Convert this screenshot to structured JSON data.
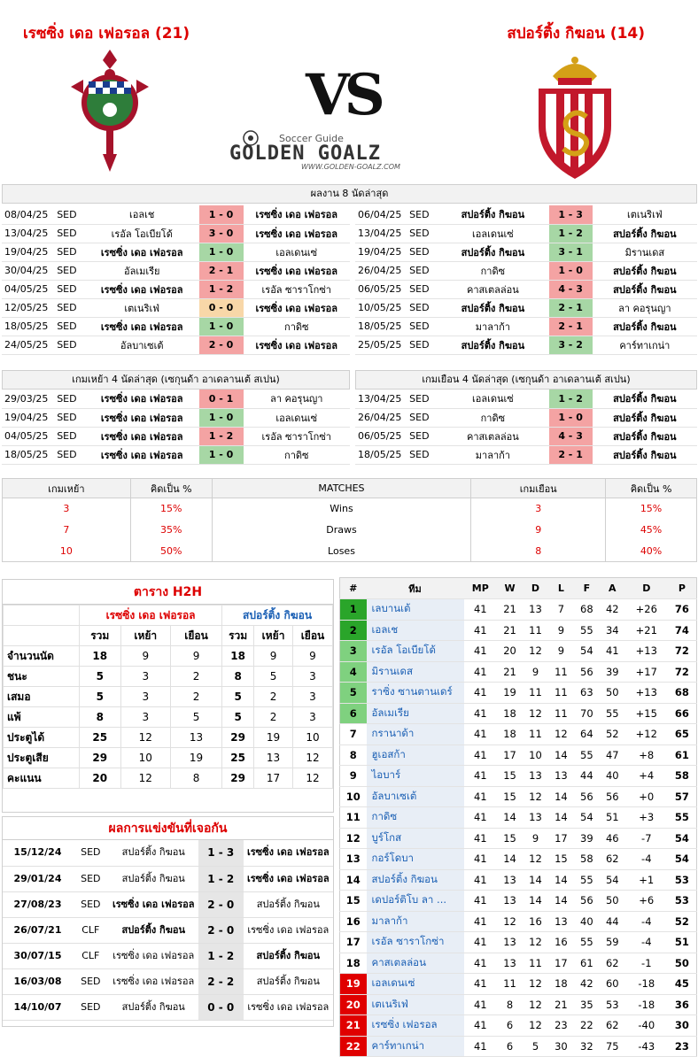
{
  "header": {
    "home_title": "เรซซิ่ง เดอ เฟอรอล (21)",
    "away_title": "สปอร์ติ้ง กิฆอน (14)",
    "vs": "VS",
    "brand_sub": "Soccer Guide",
    "brand_main": "GOLDEN GOALZ",
    "brand_url": "WWW.GOLDEN-GOALZ.COM"
  },
  "last8": {
    "title": "ผลงาน 8 นัดล่าสุด",
    "home": [
      {
        "date": "08/04/25",
        "comp": "SED",
        "t1": "เอลเช",
        "score": "1 - 0",
        "t2": "เรซซิ่ง เดอ เฟอรอล",
        "res": "lose",
        "b": "t2"
      },
      {
        "date": "13/04/25",
        "comp": "SED",
        "t1": "เรอัล โอเบียโด้",
        "score": "3 - 0",
        "t2": "เรซซิ่ง เดอ เฟอรอล",
        "res": "lose",
        "b": "t2"
      },
      {
        "date": "19/04/25",
        "comp": "SED",
        "t1": "เรซซิ่ง เดอ เฟอรอล",
        "score": "1 - 0",
        "t2": "เอลเดนเซ่",
        "res": "win",
        "b": "t1"
      },
      {
        "date": "30/04/25",
        "comp": "SED",
        "t1": "อัลเมเรีย",
        "score": "2 - 1",
        "t2": "เรซซิ่ง เดอ เฟอรอล",
        "res": "lose",
        "b": "t2"
      },
      {
        "date": "04/05/25",
        "comp": "SED",
        "t1": "เรซซิ่ง เดอ เฟอรอล",
        "score": "1 - 2",
        "t2": "เรอัล ซาราโกซ่า",
        "res": "lose",
        "b": "t1"
      },
      {
        "date": "12/05/25",
        "comp": "SED",
        "t1": "เตเนริเฟ่",
        "score": "0 - 0",
        "t2": "เรซซิ่ง เดอ เฟอรอล",
        "res": "draw",
        "b": "t2"
      },
      {
        "date": "18/05/25",
        "comp": "SED",
        "t1": "เรซซิ่ง เดอ เฟอรอล",
        "score": "1 - 0",
        "t2": "กาดิซ",
        "res": "win",
        "b": "t1"
      },
      {
        "date": "24/05/25",
        "comp": "SED",
        "t1": "อัลบาเซเต้",
        "score": "2 - 0",
        "t2": "เรซซิ่ง เดอ เฟอรอล",
        "res": "lose",
        "b": "t2"
      }
    ],
    "away": [
      {
        "date": "06/04/25",
        "comp": "SED",
        "t1": "สปอร์ติ้ง กิฆอน",
        "score": "1 - 3",
        "t2": "เตเนริเฟ่",
        "res": "lose",
        "b": "t1"
      },
      {
        "date": "13/04/25",
        "comp": "SED",
        "t1": "เอลเดนเซ่",
        "score": "1 - 2",
        "t2": "สปอร์ติ้ง กิฆอน",
        "res": "win",
        "b": "t2"
      },
      {
        "date": "19/04/25",
        "comp": "SED",
        "t1": "สปอร์ติ้ง กิฆอน",
        "score": "3 - 1",
        "t2": "มิรานเดส",
        "res": "win",
        "b": "t1"
      },
      {
        "date": "26/04/25",
        "comp": "SED",
        "t1": "กาดิซ",
        "score": "1 - 0",
        "t2": "สปอร์ติ้ง กิฆอน",
        "res": "lose",
        "b": "t2"
      },
      {
        "date": "06/05/25",
        "comp": "SED",
        "t1": "คาสเตลล่อน",
        "score": "4 - 3",
        "t2": "สปอร์ติ้ง กิฆอน",
        "res": "lose",
        "b": "t2"
      },
      {
        "date": "10/05/25",
        "comp": "SED",
        "t1": "สปอร์ติ้ง กิฆอน",
        "score": "2 - 1",
        "t2": "ลา คอรุนญา",
        "res": "win",
        "b": "t1"
      },
      {
        "date": "18/05/25",
        "comp": "SED",
        "t1": "มาลาก้า",
        "score": "2 - 1",
        "t2": "สปอร์ติ้ง กิฆอน",
        "res": "lose",
        "b": "t2"
      },
      {
        "date": "25/05/25",
        "comp": "SED",
        "t1": "สปอร์ติ้ง กิฆอน",
        "score": "3 - 2",
        "t2": "คาร์ทาเกน่า",
        "res": "win",
        "b": "t1"
      }
    ]
  },
  "last4": {
    "home_title": "เกมเหย้า 4 นัดล่าสุด (เซกุนด้า อาเดลานเต้ สเปน)",
    "away_title": "เกมเยือน 4 นัดล่าสุด (เซกุนด้า อาเดลานเต้ สเปน)",
    "home": [
      {
        "date": "29/03/25",
        "comp": "SED",
        "t1": "เรซซิ่ง เดอ เฟอรอล",
        "score": "0 - 1",
        "t2": "ลา คอรุนญา",
        "res": "lose",
        "b": "t1"
      },
      {
        "date": "19/04/25",
        "comp": "SED",
        "t1": "เรซซิ่ง เดอ เฟอรอล",
        "score": "1 - 0",
        "t2": "เอลเดนเซ่",
        "res": "win",
        "b": "t1"
      },
      {
        "date": "04/05/25",
        "comp": "SED",
        "t1": "เรซซิ่ง เดอ เฟอรอล",
        "score": "1 - 2",
        "t2": "เรอัล ซาราโกซ่า",
        "res": "lose",
        "b": "t1"
      },
      {
        "date": "18/05/25",
        "comp": "SED",
        "t1": "เรซซิ่ง เดอ เฟอรอล",
        "score": "1 - 0",
        "t2": "กาดิซ",
        "res": "win",
        "b": "t1"
      }
    ],
    "away": [
      {
        "date": "13/04/25",
        "comp": "SED",
        "t1": "เอลเดนเซ่",
        "score": "1 - 2",
        "t2": "สปอร์ติ้ง กิฆอน",
        "res": "win",
        "b": "t2"
      },
      {
        "date": "26/04/25",
        "comp": "SED",
        "t1": "กาดิซ",
        "score": "1 - 0",
        "t2": "สปอร์ติ้ง กิฆอน",
        "res": "lose",
        "b": "t2"
      },
      {
        "date": "06/05/25",
        "comp": "SED",
        "t1": "คาสเตลล่อน",
        "score": "4 - 3",
        "t2": "สปอร์ติ้ง กิฆอน",
        "res": "lose",
        "b": "t2"
      },
      {
        "date": "18/05/25",
        "comp": "SED",
        "t1": "มาลาก้า",
        "score": "2 - 1",
        "t2": "สปอร์ติ้ง กิฆอน",
        "res": "lose",
        "b": "t2"
      }
    ]
  },
  "stats": {
    "headers": [
      "เกมเหย้า",
      "คิดเป็น %",
      "MATCHES",
      "เกมเยือน",
      "คิดเป็น %"
    ],
    "rows": [
      [
        "3",
        "15%",
        "Wins",
        "3",
        "15%"
      ],
      [
        "7",
        "35%",
        "Draws",
        "9",
        "45%"
      ],
      [
        "10",
        "50%",
        "Loses",
        "8",
        "40%"
      ]
    ]
  },
  "h2h": {
    "title": "ตาราง H2H",
    "home": "เรซซิ่ง เดอ เฟอรอล",
    "away": "สปอร์ติ้ง กิฆอน",
    "sub": [
      "รวม",
      "เหย้า",
      "เยือน",
      "รวม",
      "เหย้า",
      "เยือน"
    ],
    "rows": [
      [
        "จำนวนนัด",
        "18",
        "9",
        "9",
        "18",
        "9",
        "9"
      ],
      [
        "ชนะ",
        "5",
        "3",
        "2",
        "8",
        "5",
        "3"
      ],
      [
        "เสมอ",
        "5",
        "3",
        "2",
        "5",
        "2",
        "3"
      ],
      [
        "แพ้",
        "8",
        "3",
        "5",
        "5",
        "2",
        "3"
      ],
      [
        "ประตูได้",
        "25",
        "12",
        "13",
        "29",
        "19",
        "10"
      ],
      [
        "ประตูเสีย",
        "29",
        "10",
        "19",
        "25",
        "13",
        "12"
      ],
      [
        "คะแนน",
        "20",
        "12",
        "8",
        "29",
        "17",
        "12"
      ]
    ]
  },
  "past": {
    "title": "ผลการแข่งขันที่เจอกัน",
    "rows": [
      {
        "date": "15/12/24",
        "comp": "SED",
        "t1": "สปอร์ติ้ง กิฆอน",
        "score": "1 - 3",
        "t2": "เรซซิ่ง เดอ เฟอรอล",
        "b": "t2"
      },
      {
        "date": "29/01/24",
        "comp": "SED",
        "t1": "สปอร์ติ้ง กิฆอน",
        "score": "1 - 2",
        "t2": "เรซซิ่ง เดอ เฟอรอล",
        "b": "t2"
      },
      {
        "date": "27/08/23",
        "comp": "SED",
        "t1": "เรซซิ่ง เดอ เฟอรอล",
        "score": "2 - 0",
        "t2": "สปอร์ติ้ง กิฆอน",
        "b": "t1"
      },
      {
        "date": "26/07/21",
        "comp": "CLF",
        "t1": "สปอร์ติ้ง กิฆอน",
        "score": "2 - 0",
        "t2": "เรซซิ่ง เดอ เฟอรอล",
        "b": "t1"
      },
      {
        "date": "30/07/15",
        "comp": "CLF",
        "t1": "เรซซิ่ง เดอ เฟอรอล",
        "score": "1 - 2",
        "t2": "สปอร์ติ้ง กิฆอน",
        "b": "t2"
      },
      {
        "date": "16/03/08",
        "comp": "SED",
        "t1": "เรซซิ่ง เดอ เฟอรอล",
        "score": "2 - 2",
        "t2": "สปอร์ติ้ง กิฆอน",
        "b": ""
      },
      {
        "date": "14/10/07",
        "comp": "SED",
        "t1": "สปอร์ติ้ง กิฆอน",
        "score": "0 - 0",
        "t2": "เรซซิ่ง เดอ เฟอรอล",
        "b": ""
      }
    ]
  },
  "league": {
    "headers": [
      "#",
      "ทีม",
      "MP",
      "W",
      "D",
      "L",
      "F",
      "A",
      "D",
      "P"
    ],
    "rows": [
      [
        "1",
        "เลบานเต้",
        "41",
        "21",
        "13",
        "7",
        "68",
        "42",
        "+26",
        "76",
        "g"
      ],
      [
        "2",
        "เอลเช",
        "41",
        "21",
        "11",
        "9",
        "55",
        "34",
        "+21",
        "74",
        "g"
      ],
      [
        "3",
        "เรอัล โอเบียโด้",
        "41",
        "20",
        "12",
        "9",
        "54",
        "41",
        "+13",
        "72",
        "lg"
      ],
      [
        "4",
        "มิรานเดส",
        "41",
        "21",
        "9",
        "11",
        "56",
        "39",
        "+17",
        "72",
        "lg"
      ],
      [
        "5",
        "ราซิ่ง ซานตานเดร์",
        "41",
        "19",
        "11",
        "11",
        "63",
        "50",
        "+13",
        "68",
        "lg"
      ],
      [
        "6",
        "อัลเมเรีย",
        "41",
        "18",
        "12",
        "11",
        "70",
        "55",
        "+15",
        "66",
        "lg"
      ],
      [
        "7",
        "กรานาด้า",
        "41",
        "18",
        "11",
        "12",
        "64",
        "52",
        "+12",
        "65",
        ""
      ],
      [
        "8",
        "ฮูเอสก้า",
        "41",
        "17",
        "10",
        "14",
        "55",
        "47",
        "+8",
        "61",
        ""
      ],
      [
        "9",
        "ไอบาร์",
        "41",
        "15",
        "13",
        "13",
        "44",
        "40",
        "+4",
        "58",
        ""
      ],
      [
        "10",
        "อัลบาเซเต้",
        "41",
        "15",
        "12",
        "14",
        "56",
        "56",
        "+0",
        "57",
        ""
      ],
      [
        "11",
        "กาดิซ",
        "41",
        "14",
        "13",
        "14",
        "54",
        "51",
        "+3",
        "55",
        ""
      ],
      [
        "12",
        "บูร์โกส",
        "41",
        "15",
        "9",
        "17",
        "39",
        "46",
        "-7",
        "54",
        ""
      ],
      [
        "13",
        "กอร์โดบา",
        "41",
        "14",
        "12",
        "15",
        "58",
        "62",
        "-4",
        "54",
        ""
      ],
      [
        "14",
        "สปอร์ติ้ง กิฆอน",
        "41",
        "13",
        "14",
        "14",
        "55",
        "54",
        "+1",
        "53",
        ""
      ],
      [
        "15",
        "เดปอร์ติโบ ลา ...",
        "41",
        "13",
        "14",
        "14",
        "56",
        "50",
        "+6",
        "53",
        ""
      ],
      [
        "16",
        "มาลาก้า",
        "41",
        "12",
        "16",
        "13",
        "40",
        "44",
        "-4",
        "52",
        ""
      ],
      [
        "17",
        "เรอัล ซาราโกซ่า",
        "41",
        "13",
        "12",
        "16",
        "55",
        "59",
        "-4",
        "51",
        ""
      ],
      [
        "18",
        "คาสเตลล่อน",
        "41",
        "13",
        "11",
        "17",
        "61",
        "62",
        "-1",
        "50",
        ""
      ],
      [
        "19",
        "เอลเดนเซ่",
        "41",
        "11",
        "12",
        "18",
        "42",
        "60",
        "-18",
        "45",
        "rel"
      ],
      [
        "20",
        "เตเนริเฟ่",
        "41",
        "8",
        "12",
        "21",
        "35",
        "53",
        "-18",
        "36",
        "rel"
      ],
      [
        "21",
        "เรซซิ่ง เฟอรอล",
        "41",
        "6",
        "12",
        "23",
        "22",
        "62",
        "-40",
        "30",
        "rel"
      ],
      [
        "22",
        "คาร์ทาเกน่า",
        "41",
        "6",
        "5",
        "30",
        "32",
        "75",
        "-43",
        "23",
        "rel"
      ]
    ]
  }
}
